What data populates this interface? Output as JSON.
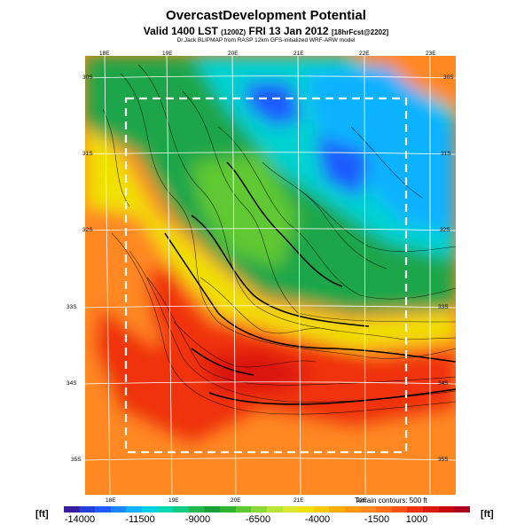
{
  "header": {
    "title": "OvercastDevelopment Potential",
    "subtitle_main": "Valid 1400 LST",
    "subtitle_small1": "(1200Z)",
    "subtitle_date": "FRI 13 Jan 2012",
    "subtitle_small2": "[18hrFcst@2202]",
    "credit": "Dr.Jack BLIPMAP from RASP 12km GFS-initialized WRF-ARW model"
  },
  "map": {
    "lon_top_labels": [
      "18E",
      "19E",
      "20E",
      "21E",
      "22E",
      "23E"
    ],
    "lon_bottom_labels": [
      "18E",
      "19E",
      "20E",
      "21E",
      "22E"
    ],
    "lat_left_labels": [
      "30S",
      "31S",
      "32S",
      "33S",
      "34S",
      "35S"
    ],
    "lat_right_labels": [
      "30S",
      "31S",
      "32S",
      "33S",
      "34S",
      "35S"
    ],
    "terrain_note": "Terrain contours: 500 ft",
    "colors": {
      "blue": "#1e5aff",
      "cyan": "#00d2d2",
      "green": "#1aa64a",
      "yellow": "#f0e000",
      "orange": "#ff8820",
      "red": "#f0300a",
      "boundary": "#ffffff"
    }
  },
  "legend": {
    "unit_left": "[ft]",
    "unit_right": "[ft]",
    "tick_labels": [
      "-14000",
      "-11500",
      "-9000",
      "-6500",
      "-4000",
      "-1500",
      "1000"
    ],
    "swatches": [
      "#3a1ca0",
      "#2240d8",
      "#1e5aff",
      "#1c86ff",
      "#10b2ff",
      "#00d2e6",
      "#00d8b4",
      "#10cc80",
      "#22b84e",
      "#1aa03a",
      "#2eb42e",
      "#5ec832",
      "#8cd834",
      "#b8e436",
      "#dce830",
      "#f0e000",
      "#f8c800",
      "#fcae00",
      "#fc9810",
      "#ff8820",
      "#ff7018",
      "#f85010",
      "#f0300a",
      "#dc1808",
      "#c80808",
      "#b00020"
    ]
  }
}
